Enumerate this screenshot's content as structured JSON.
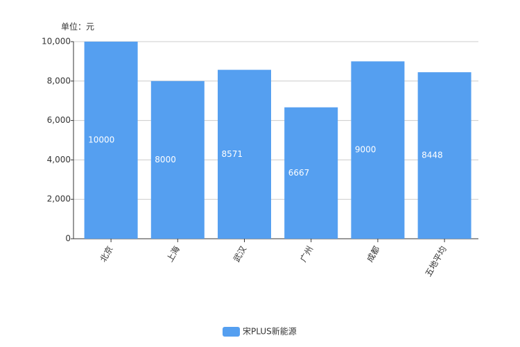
{
  "chart_data": {
    "type": "bar",
    "ylabel": "单位：元",
    "categories": [
      "北京",
      "上海",
      "武汉",
      "广州",
      "成都",
      "五地平均"
    ],
    "series": [
      {
        "name": "宋PLUS新能源",
        "color": "#559ff0",
        "values": [
          10000,
          8000,
          8571,
          6667,
          9000,
          8448
        ]
      }
    ],
    "ylim": [
      0,
      10000
    ],
    "yticks": [
      0,
      {
        "value": 2000,
        "label": "2,000"
      },
      {
        "value": 4000,
        "label": "4,000"
      },
      {
        "value": 6000,
        "label": "6,000"
      },
      {
        "value": 8000,
        "label": "8,000"
      },
      {
        "value": 10000,
        "label": "10,000"
      }
    ],
    "grid": true,
    "legend": "bottom"
  }
}
